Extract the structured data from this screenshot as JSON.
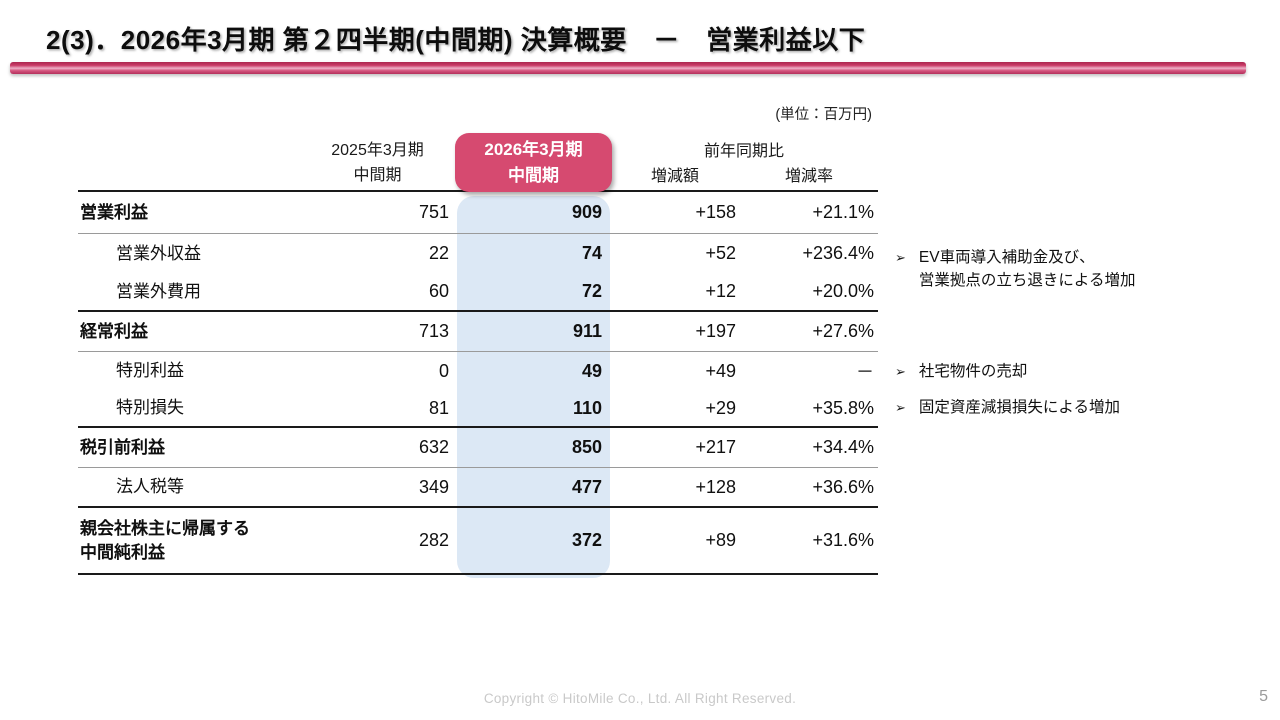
{
  "header": {
    "title": "2(3)．2026年3月期 第２四半期(中間期) 決算概要　－　営業利益以下"
  },
  "table": {
    "unit_note": "(単位：百万円)",
    "columns": {
      "prev": [
        "2025年3月期",
        "中間期"
      ],
      "current": [
        "2026年3月期",
        "中間期"
      ],
      "yoy": "前年同期比",
      "yoy_amount": "増減額",
      "yoy_rate": "増減率"
    },
    "rows": [
      {
        "label": "営業利益",
        "v2025": "751",
        "v2026": "909",
        "diff": "+158",
        "rate": "+21.1%"
      },
      {
        "label": "営業外収益",
        "v2025": "22",
        "v2026": "74",
        "diff": "+52",
        "rate": "+236.4%"
      },
      {
        "label": "営業外費用",
        "v2025": "60",
        "v2026": "72",
        "diff": "+12",
        "rate": "+20.0%"
      },
      {
        "label": "経常利益",
        "v2025": "713",
        "v2026": "911",
        "diff": "+197",
        "rate": "+27.6%"
      },
      {
        "label": "特別利益",
        "v2025": "0",
        "v2026": "49",
        "diff": "+49",
        "rate": "－"
      },
      {
        "label": "特別損失",
        "v2025": "81",
        "v2026": "110",
        "diff": "+29",
        "rate": "+35.8%"
      },
      {
        "label": "税引前利益",
        "v2025": "632",
        "v2026": "850",
        "diff": "+217",
        "rate": "+34.4%"
      },
      {
        "label": "法人税等",
        "v2025": "349",
        "v2026": "477",
        "diff": "+128",
        "rate": "+36.6%"
      },
      {
        "label": "親会社株主に帰属する\n中間純利益",
        "v2025": "282",
        "v2026": "372",
        "diff": "+89",
        "rate": "+31.6%"
      }
    ]
  },
  "annotations": [
    {
      "icon": "➢",
      "text": "EV車両導入補助金及び、\n営業拠点の立ち退きによる増加"
    },
    {
      "icon": "➢",
      "text": "社宅物件の売却"
    },
    {
      "icon": "➢",
      "text": "固定資産減損損失による増加"
    }
  ],
  "footer": {
    "copyright": "Copyright © HitoMile Co., Ltd. All Right Reserved.",
    "page_number": "5"
  },
  "colors": {
    "accent_pink": "#d64a70",
    "title_bar_pink": "#c93b67",
    "highlight_blue": "#dce8f5"
  }
}
